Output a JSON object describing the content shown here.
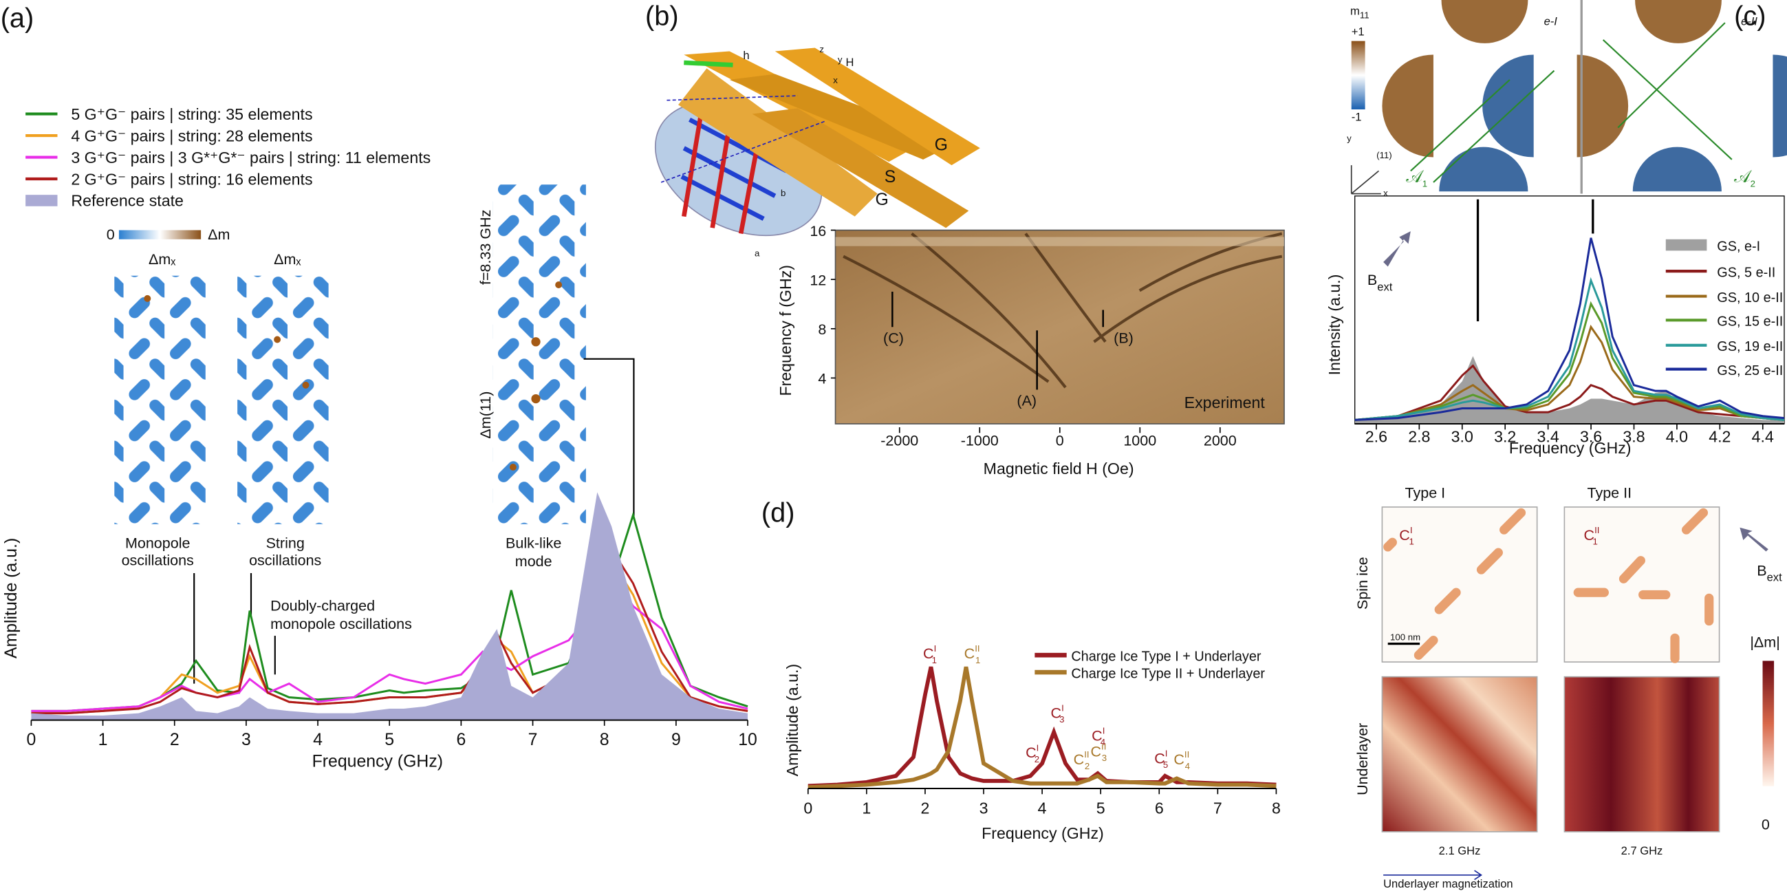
{
  "panels": {
    "labels": [
      "(a)",
      "(b)",
      "(c)",
      "(d)"
    ],
    "a": {
      "cbar_min": "0",
      "cbar_label": "Δm",
      "dmx_monopole": "Δmₓ",
      "dmx_string": "Δmₓ",
      "monopole": [
        "Monopole",
        "oscillations"
      ],
      "string": [
        "String",
        "oscillations"
      ],
      "doubly": [
        "Doubly-charged",
        "monopole oscillations"
      ],
      "bulk": [
        "Bulk-like",
        "mode"
      ],
      "freq": "f=8.33 GHz",
      "dm11": "Δm(11)"
    },
    "b": {
      "strips": [
        "G",
        "S",
        "G"
      ],
      "field": "H",
      "axes": [
        "x",
        "y",
        "z"
      ],
      "rf": "h",
      "lattice": [
        "a",
        "b"
      ]
    },
    "c": {
      "m_base": "m",
      "m_sub": "11",
      "plus": "+1",
      "minus": "-1",
      "eI": "e-I",
      "eII": "e-II",
      "dir": "(11)",
      "x": "x",
      "y": "y",
      "A1": "𝒜",
      "A1_sub": "1",
      "A2": "𝒜",
      "A2_sub": "2",
      "B": "B",
      "ext": "ext",
      "type1": "Type I",
      "type2": "Type II",
      "spin_ice": "Spin ice",
      "underlayer": "Underlayer",
      "f1": "2.1 GHz",
      "f2": "2.7 GHz",
      "magnetization": "Underlayer magnetization",
      "dm": "|Δm|",
      "zero": "0",
      "scale": "100 nm",
      "B2": "B",
      "ext2": "ext",
      "C1": "C",
      "C1_sub": "1",
      "C1_sup": "I",
      "C2": "C",
      "C2_sub": "1",
      "C2_sup": "II"
    }
  },
  "chart_data": [
    {
      "type": "line",
      "xlabel": "Frequency (GHz)",
      "ylabel": "Amplitude (a.u.)",
      "xlim": [
        0,
        10
      ],
      "ylim": [
        0,
        1
      ],
      "xticks": [
        0,
        1,
        2,
        3,
        4,
        5,
        6,
        7,
        8,
        9,
        10
      ],
      "x": [
        0,
        0.5,
        1,
        1.5,
        1.8,
        2.1,
        2.3,
        2.6,
        2.9,
        3.05,
        3.3,
        3.6,
        4,
        4.5,
        5,
        5.2,
        5.5,
        6,
        6.3,
        6.5,
        6.7,
        7,
        7.5,
        7.9,
        8.1,
        8.4,
        8.8,
        9.2,
        9.6,
        10
      ],
      "series": [
        {
          "name": "5 G⁺G⁻ pairs | string: 35 elements",
          "color": "#1e8c1e",
          "kind": "line",
          "values": [
            0.04,
            0.04,
            0.05,
            0.06,
            0.1,
            0.16,
            0.26,
            0.13,
            0.12,
            0.48,
            0.14,
            0.1,
            0.09,
            0.1,
            0.13,
            0.12,
            0.13,
            0.14,
            0.2,
            0.3,
            0.57,
            0.2,
            0.25,
            0.55,
            0.6,
            0.9,
            0.45,
            0.15,
            0.1,
            0.06
          ]
        },
        {
          "name": "4 G⁺G⁻ pairs | string: 28 elements",
          "color": "#f0a020",
          "kind": "line",
          "values": [
            0.03,
            0.03,
            0.04,
            0.06,
            0.1,
            0.2,
            0.18,
            0.12,
            0.15,
            0.28,
            0.12,
            0.08,
            0.07,
            0.08,
            0.1,
            0.1,
            0.1,
            0.12,
            0.22,
            0.35,
            0.3,
            0.12,
            0.2,
            0.6,
            0.7,
            0.55,
            0.25,
            0.1,
            0.06,
            0.04
          ]
        },
        {
          "name": "3 G⁺G⁻ pairs | 3 G*⁺G*⁻ pairs | string: 11 elements",
          "color": "#e82ee8",
          "kind": "line",
          "values": [
            0.04,
            0.04,
            0.05,
            0.06,
            0.1,
            0.15,
            0.12,
            0.1,
            0.12,
            0.18,
            0.12,
            0.16,
            0.08,
            0.1,
            0.2,
            0.18,
            0.16,
            0.2,
            0.3,
            0.25,
            0.22,
            0.28,
            0.35,
            0.5,
            0.65,
            0.5,
            0.4,
            0.15,
            0.08,
            0.05
          ]
        },
        {
          "name": "2 G⁺G⁻ pairs | string: 16 elements",
          "color": "#b01c1c",
          "kind": "line",
          "values": [
            0.03,
            0.03,
            0.04,
            0.05,
            0.08,
            0.14,
            0.12,
            0.1,
            0.13,
            0.32,
            0.12,
            0.08,
            0.07,
            0.08,
            0.1,
            0.1,
            0.1,
            0.12,
            0.25,
            0.38,
            0.25,
            0.12,
            0.2,
            0.62,
            0.75,
            0.6,
            0.3,
            0.1,
            0.06,
            0.04
          ]
        },
        {
          "name": "Reference state",
          "color": "#aaaad4",
          "kind": "area",
          "values": [
            0.03,
            0.02,
            0.02,
            0.03,
            0.06,
            0.1,
            0.04,
            0.03,
            0.06,
            0.1,
            0.05,
            0.04,
            0.03,
            0.03,
            0.05,
            0.05,
            0.06,
            0.1,
            0.3,
            0.4,
            0.15,
            0.1,
            0.25,
            1,
            0.85,
            0.5,
            0.2,
            0.1,
            0.05,
            0.03
          ]
        }
      ]
    },
    {
      "type": "heatmap",
      "xlabel": "Magnetic field H (Oe)",
      "ylabel": "Frequency f (GHz)",
      "xlim": [
        -2800,
        2800
      ],
      "ylim": [
        0,
        16
      ],
      "xticks": [
        -2000,
        -1000,
        0,
        1000,
        2000
      ],
      "yticks": [
        4,
        8,
        12,
        16
      ],
      "annotations": [
        "(A)",
        "(B)",
        "(C)"
      ],
      "legend_text": "Experiment"
    },
    {
      "type": "line",
      "xlabel": "Frequency (GHz)",
      "ylabel": "Intensity (a.u.)",
      "xlim": [
        2.5,
        4.5
      ],
      "ylim": [
        0,
        1
      ],
      "xticks": [
        2.6,
        2.8,
        {
          "value": 3,
          "label": "3.0"
        },
        3.2,
        3.4,
        3.6,
        3.8,
        {
          "value": 4,
          "label": "4.0"
        },
        4.2,
        4.4
      ],
      "x": [
        2.5,
        2.7,
        2.9,
        3.0,
        3.05,
        3.1,
        3.2,
        3.3,
        3.4,
        3.5,
        3.55,
        3.6,
        3.65,
        3.7,
        3.8,
        3.9,
        3.95,
        4.0,
        4.1,
        4.2,
        4.3,
        4.4,
        4.5
      ],
      "series": [
        {
          "name": "GS, e-I",
          "color": "#a0a0a0",
          "kind": "area",
          "values": [
            0.02,
            0.04,
            0.1,
            0.22,
            0.35,
            0.22,
            0.08,
            0.06,
            0.06,
            0.08,
            0.1,
            0.13,
            0.13,
            0.12,
            0.1,
            0.16,
            0.17,
            0.12,
            0.06,
            0.04,
            0.03,
            0.02,
            0.02
          ]
        },
        {
          "name": "GS, 5 e-II",
          "color": "#8b1a1a",
          "kind": "line",
          "values": [
            0.02,
            0.04,
            0.12,
            0.25,
            0.3,
            0.22,
            0.09,
            0.06,
            0.06,
            0.1,
            0.14,
            0.2,
            0.18,
            0.14,
            0.1,
            0.12,
            0.12,
            0.1,
            0.06,
            0.05,
            0.04,
            0.03,
            0.02
          ]
        },
        {
          "name": "GS, 10 e-II",
          "color": "#9a6a1a",
          "kind": "line",
          "values": [
            0.02,
            0.04,
            0.1,
            0.17,
            0.2,
            0.16,
            0.08,
            0.07,
            0.1,
            0.2,
            0.32,
            0.5,
            0.42,
            0.28,
            0.14,
            0.13,
            0.13,
            0.11,
            0.07,
            0.08,
            0.04,
            0.03,
            0.02
          ]
        },
        {
          "name": "GS, 15 e-II",
          "color": "#5a9a2a",
          "kind": "line",
          "values": [
            0.02,
            0.04,
            0.09,
            0.13,
            0.15,
            0.13,
            0.08,
            0.08,
            0.12,
            0.26,
            0.42,
            0.62,
            0.52,
            0.34,
            0.16,
            0.14,
            0.14,
            0.12,
            0.08,
            0.09,
            0.04,
            0.03,
            0.02
          ]
        },
        {
          "name": "GS, 19 e-II",
          "color": "#2a9a9a",
          "kind": "line",
          "values": [
            0.02,
            0.04,
            0.08,
            0.11,
            0.12,
            0.11,
            0.08,
            0.09,
            0.14,
            0.3,
            0.5,
            0.74,
            0.6,
            0.38,
            0.17,
            0.15,
            0.15,
            0.13,
            0.08,
            0.1,
            0.05,
            0.03,
            0.02
          ]
        },
        {
          "name": "GS, 25 e-II",
          "color": "#1a2a9a",
          "kind": "line",
          "values": [
            0.02,
            0.03,
            0.06,
            0.08,
            0.08,
            0.08,
            0.08,
            0.1,
            0.17,
            0.38,
            0.62,
            0.96,
            0.75,
            0.45,
            0.2,
            0.17,
            0.17,
            0.14,
            0.09,
            0.12,
            0.06,
            0.04,
            0.03
          ]
        }
      ]
    },
    {
      "type": "line",
      "xlabel": "Frequency (GHz)",
      "ylabel": "Amplitude (a.u.)",
      "xlim": [
        0,
        8
      ],
      "ylim": [
        0,
        1
      ],
      "xticks": [
        0,
        1,
        2,
        3,
        4,
        5,
        6,
        7,
        8
      ],
      "x": [
        0,
        0.5,
        1,
        1.5,
        1.8,
        2.0,
        2.1,
        2.2,
        2.4,
        2.6,
        2.7,
        2.8,
        3.0,
        3.5,
        3.8,
        4.0,
        4.2,
        4.4,
        4.6,
        4.8,
        4.95,
        5.1,
        5.5,
        6.0,
        6.1,
        6.3,
        6.5,
        7,
        7.5,
        8
      ],
      "series": [
        {
          "name": "Charge Ice Type I + Underlayer",
          "color": "#9b1c22",
          "kind": "line",
          "values": [
            0.02,
            0.03,
            0.05,
            0.1,
            0.25,
            0.75,
            0.97,
            0.7,
            0.25,
            0.12,
            0.1,
            0.08,
            0.06,
            0.06,
            0.1,
            0.2,
            0.45,
            0.2,
            0.07,
            0.07,
            0.12,
            0.06,
            0.05,
            0.05,
            0.1,
            0.05,
            0.05,
            0.04,
            0.04,
            0.03
          ]
        },
        {
          "name": "Charge Ice Type II + Underlayer",
          "color": "#a8782a",
          "kind": "line",
          "values": [
            0.01,
            0.02,
            0.03,
            0.05,
            0.07,
            0.1,
            0.12,
            0.15,
            0.3,
            0.7,
            0.97,
            0.7,
            0.2,
            0.06,
            0.04,
            0.04,
            0.04,
            0.04,
            0.04,
            0.07,
            0.1,
            0.05,
            0.05,
            0.04,
            0.04,
            0.08,
            0.04,
            0.03,
            0.03,
            0.02
          ]
        }
      ],
      "annotations": [
        {
          "base": "C",
          "sub": "1",
          "sup": "I",
          "color": "#9b1c22"
        },
        {
          "base": "C",
          "sub": "1",
          "sup": "II",
          "color": "#a8782a"
        },
        {
          "base": "C",
          "sub": "2",
          "sup": "I",
          "color": "#9b1c22"
        },
        {
          "base": "C",
          "sub": "3",
          "sup": "I",
          "color": "#9b1c22"
        },
        {
          "base": "C",
          "sub": "2",
          "sup": "II",
          "color": "#a8782a"
        },
        {
          "base": "C",
          "sub": "3",
          "sup": "II",
          "color": "#a8782a"
        },
        {
          "base": "C",
          "sub": "4",
          "sup": "I",
          "color": "#9b1c22"
        },
        {
          "base": "C",
          "sub": "5",
          "sup": "I",
          "color": "#9b1c22"
        },
        {
          "base": "C",
          "sub": "4",
          "sup": "II",
          "color": "#a8782a"
        }
      ]
    }
  ]
}
